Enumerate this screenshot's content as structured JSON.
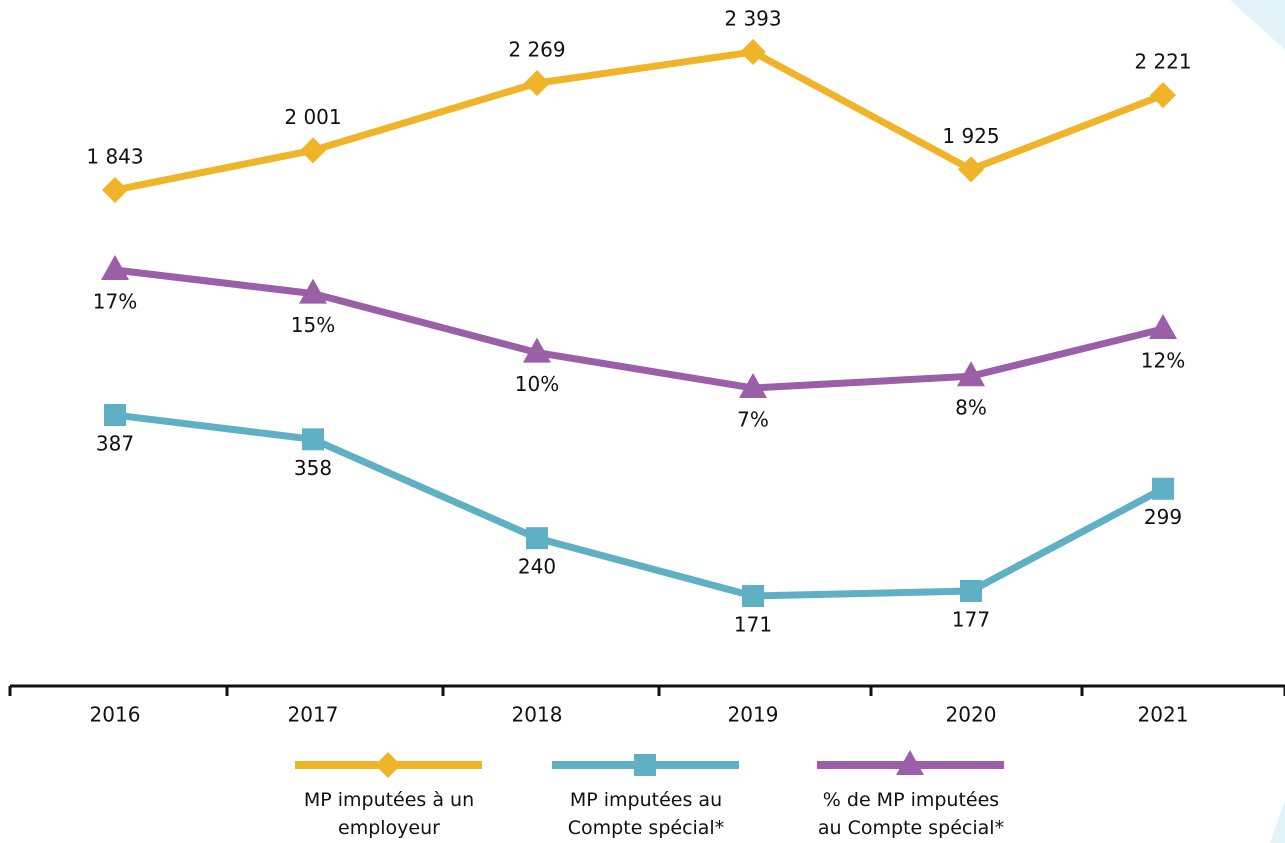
{
  "chart_data": {
    "type": "line",
    "categories": [
      "2016",
      "2017",
      "2018",
      "2019",
      "2020",
      "2021"
    ],
    "series": [
      {
        "name": "MP imputées à un employeur",
        "color": "#f0b429",
        "marker": "diamond",
        "values": [
          1843,
          2001,
          2269,
          2393,
          1925,
          2221
        ],
        "value_labels": [
          "1 843",
          "2 001",
          "2 269",
          "2 393",
          "1 925",
          "2 221"
        ]
      },
      {
        "name": "MP imputées au Compte spécial*",
        "color": "#5fb0c4",
        "marker": "square",
        "values": [
          387,
          358,
          240,
          171,
          177,
          299
        ]
      },
      {
        "name": "% de MP imputées au Compte spécial*",
        "color": "#9a5fa7",
        "marker": "triangle",
        "values": [
          17,
          15,
          10,
          7,
          8,
          12
        ],
        "value_labels": [
          "17%",
          "15%",
          "10%",
          "7%",
          "8%",
          "12%"
        ]
      }
    ]
  }
}
